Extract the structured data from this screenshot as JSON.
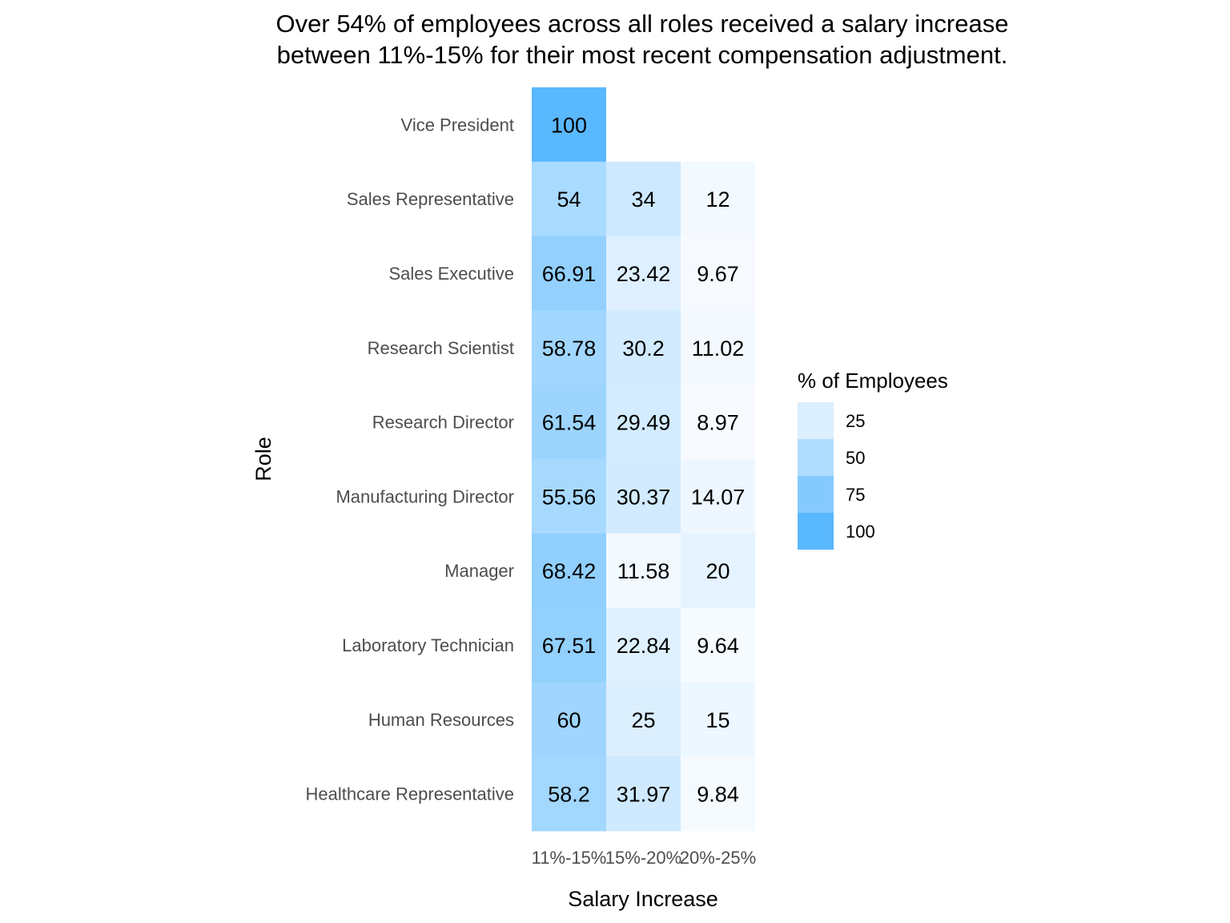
{
  "chart_data": {
    "type": "heatmap",
    "title_lines": [
      "Over 54% of employees across all roles received a salary increase",
      "between 11%-15% for their most recent compensation adjustment."
    ],
    "xlabel": "Salary Increase",
    "ylabel": "Role",
    "x_categories": [
      "11%-15%",
      "15%-20%",
      "20%-25%"
    ],
    "y_categories": [
      "Vice President",
      "Sales Representative",
      "Sales Executive",
      "Research Scientist",
      "Research Director",
      "Manufacturing Director",
      "Manager",
      "Laboratory Technician",
      "Human Resources",
      "Healthcare Representative"
    ],
    "cells": [
      {
        "role": "Vice President",
        "increase": "11%-15%",
        "value": 100,
        "label": "100"
      },
      {
        "role": "Sales Representative",
        "increase": "11%-15%",
        "value": 54,
        "label": "54"
      },
      {
        "role": "Sales Representative",
        "increase": "15%-20%",
        "value": 34,
        "label": "34"
      },
      {
        "role": "Sales Representative",
        "increase": "20%-25%",
        "value": 12,
        "label": "12"
      },
      {
        "role": "Sales Executive",
        "increase": "11%-15%",
        "value": 66.91,
        "label": "66.91"
      },
      {
        "role": "Sales Executive",
        "increase": "15%-20%",
        "value": 23.42,
        "label": "23.42"
      },
      {
        "role": "Sales Executive",
        "increase": "20%-25%",
        "value": 9.67,
        "label": "9.67"
      },
      {
        "role": "Research Scientist",
        "increase": "11%-15%",
        "value": 58.78,
        "label": "58.78"
      },
      {
        "role": "Research Scientist",
        "increase": "15%-20%",
        "value": 30.2,
        "label": "30.2"
      },
      {
        "role": "Research Scientist",
        "increase": "20%-25%",
        "value": 11.02,
        "label": "11.02"
      },
      {
        "role": "Research Director",
        "increase": "11%-15%",
        "value": 61.54,
        "label": "61.54"
      },
      {
        "role": "Research Director",
        "increase": "15%-20%",
        "value": 29.49,
        "label": "29.49"
      },
      {
        "role": "Research Director",
        "increase": "20%-25%",
        "value": 8.97,
        "label": "8.97"
      },
      {
        "role": "Manufacturing Director",
        "increase": "11%-15%",
        "value": 55.56,
        "label": "55.56"
      },
      {
        "role": "Manufacturing Director",
        "increase": "15%-20%",
        "value": 30.37,
        "label": "30.37"
      },
      {
        "role": "Manufacturing Director",
        "increase": "20%-25%",
        "value": 14.07,
        "label": "14.07"
      },
      {
        "role": "Manager",
        "increase": "11%-15%",
        "value": 68.42,
        "label": "68.42"
      },
      {
        "role": "Manager",
        "increase": "15%-20%",
        "value": 11.58,
        "label": "11.58"
      },
      {
        "role": "Manager",
        "increase": "20%-25%",
        "value": 20,
        "label": "20"
      },
      {
        "role": "Laboratory Technician",
        "increase": "11%-15%",
        "value": 67.51,
        "label": "67.51"
      },
      {
        "role": "Laboratory Technician",
        "increase": "15%-20%",
        "value": 22.84,
        "label": "22.84"
      },
      {
        "role": "Laboratory Technician",
        "increase": "20%-25%",
        "value": 9.64,
        "label": "9.64"
      },
      {
        "role": "Human Resources",
        "increase": "11%-15%",
        "value": 60,
        "label": "60"
      },
      {
        "role": "Human Resources",
        "increase": "15%-20%",
        "value": 25,
        "label": "25"
      },
      {
        "role": "Human Resources",
        "increase": "20%-25%",
        "value": 15,
        "label": "15"
      },
      {
        "role": "Healthcare Representative",
        "increase": "11%-15%",
        "value": 58.2,
        "label": "58.2"
      },
      {
        "role": "Healthcare Representative",
        "increase": "15%-20%",
        "value": 31.97,
        "label": "31.97"
      },
      {
        "role": "Healthcare Representative",
        "increase": "20%-25%",
        "value": 9.84,
        "label": "9.84"
      }
    ],
    "legend": {
      "title": "% of Employees",
      "placement": "right",
      "entries": [
        {
          "label": "25",
          "value": 25
        },
        {
          "label": "50",
          "value": 50
        },
        {
          "label": "75",
          "value": 75
        },
        {
          "label": "100",
          "value": 100
        }
      ]
    },
    "color_scale": {
      "low": "#f7fbff",
      "high": "#5ab8fe",
      "min": 8.97,
      "max": 100
    },
    "grid": false
  }
}
